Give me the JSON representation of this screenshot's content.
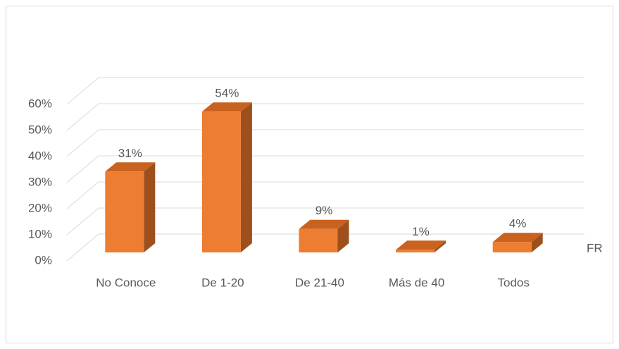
{
  "chart_data": {
    "type": "bar3d",
    "categories": [
      "No Conoce",
      "De 1-20",
      "De 21-40",
      "Más de 40",
      "Todos"
    ],
    "values": [
      31,
      54,
      9,
      1,
      4
    ],
    "value_labels": [
      "31%",
      "54%",
      "9%",
      "1%",
      "4%"
    ],
    "depth_label": "FR",
    "color": "#ed7d31",
    "ylim": [
      0,
      60
    ],
    "yticks": [
      {
        "value": 0,
        "label": "0%"
      },
      {
        "value": 10,
        "label": "10%"
      },
      {
        "value": 20,
        "label": "20%"
      },
      {
        "value": 30,
        "label": "30%"
      },
      {
        "value": 40,
        "label": "40%"
      },
      {
        "value": 50,
        "label": "50%"
      },
      {
        "value": 60,
        "label": "60%"
      }
    ],
    "grid": true
  }
}
